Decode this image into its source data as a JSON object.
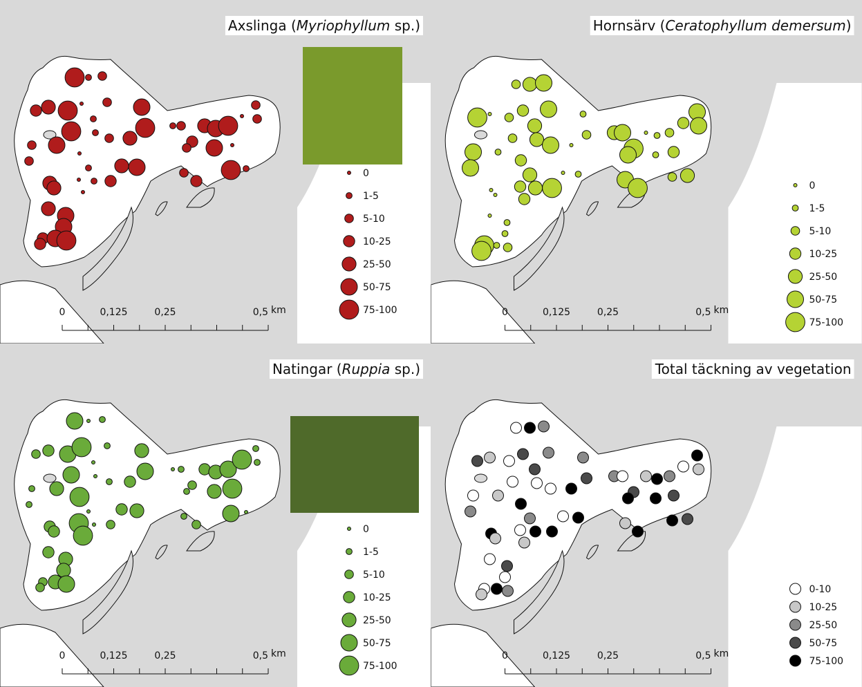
{
  "panels": [
    {
      "title": [
        {
          "text": "Axslinga ("
        },
        {
          "text": "Myriophyllum",
          "italic": true
        },
        {
          "text": " sp.)"
        }
      ],
      "color": "#b01c1c",
      "legend": [
        {
          "label": "0"
        },
        {
          "label": "1-5"
        },
        {
          "label": "5-10"
        },
        {
          "label": "10-25"
        },
        {
          "label": "25-50"
        },
        {
          "label": "50-75"
        },
        {
          "label": "75-100"
        }
      ],
      "scale": [
        "0",
        "0,125",
        "0,25",
        "0,5",
        "km"
      ],
      "photo": "#7a9a2c"
    },
    {
      "title": [
        {
          "text": "Hornsärv ("
        },
        {
          "text": "Ceratophyllum demersum",
          "italic": true
        },
        {
          "text": ")"
        }
      ],
      "color": "#b5d334",
      "legend": [
        {
          "label": "0"
        },
        {
          "label": "1-5"
        },
        {
          "label": "5-10"
        },
        {
          "label": "10-25"
        },
        {
          "label": "25-50"
        },
        {
          "label": "50-75"
        },
        {
          "label": "75-100"
        }
      ],
      "scale": [
        "0",
        "0,125",
        "0,25",
        "0,5",
        "km"
      ]
    },
    {
      "title": [
        {
          "text": "Natingar ("
        },
        {
          "text": "Ruppia",
          "italic": true
        },
        {
          "text": " sp.)"
        }
      ],
      "color": "#6aab3a",
      "legend": [
        {
          "label": "0"
        },
        {
          "label": "1-5"
        },
        {
          "label": "5-10"
        },
        {
          "label": "10-25"
        },
        {
          "label": "25-50"
        },
        {
          "label": "50-75"
        },
        {
          "label": "75-100"
        }
      ],
      "scale": [
        "0",
        "0,125",
        "0,25",
        "0,5",
        "km"
      ],
      "photo": "#4f6a2a"
    },
    {
      "title": [
        {
          "text": "Total täckning av vegetation"
        }
      ],
      "legend": [
        {
          "label": "0-10",
          "color": "#ffffff"
        },
        {
          "label": "10-25",
          "color": "#c8c8c8"
        },
        {
          "label": "25-50",
          "color": "#8a8a8a"
        },
        {
          "label": "50-75",
          "color": "#4a4a4a"
        },
        {
          "label": "75-100",
          "color": "#000000"
        }
      ],
      "scale": [
        "0",
        "0,125",
        "0,25",
        "0,5",
        "km"
      ]
    }
  ]
}
